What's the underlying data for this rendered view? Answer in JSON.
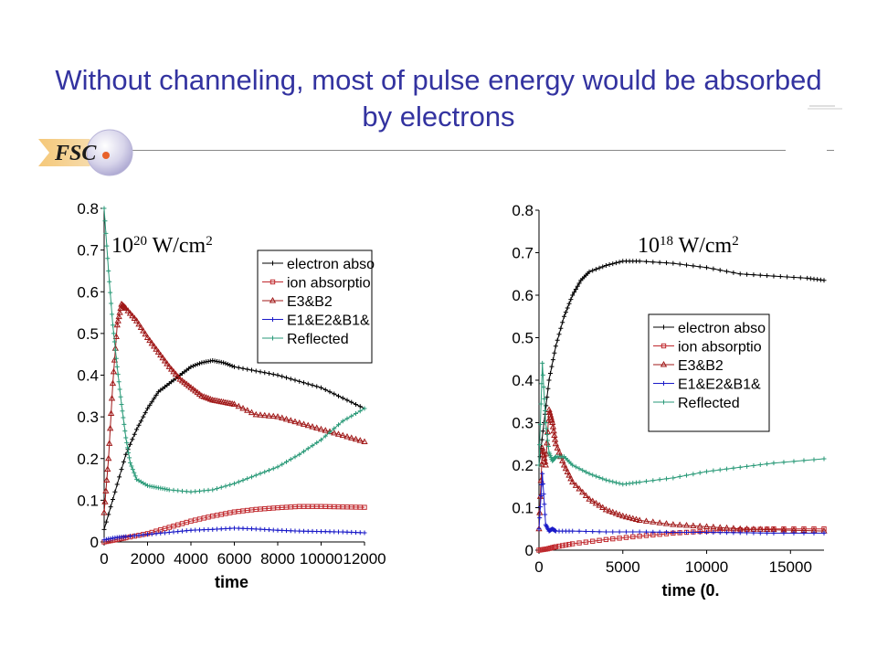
{
  "header": {
    "title": "Without channeling, most of pulse energy would be absorbed by electrons",
    "logo_text": "FSC"
  },
  "colors": {
    "title": "#3333a0",
    "electron": "#000000",
    "ion": "#c0282d",
    "e3b2": "#a01818",
    "e1e2b1b3": "#1a1ac8",
    "reflected": "#2a9a78"
  },
  "chart_data": [
    {
      "type": "line",
      "annotation": "10^20 W/cm^2",
      "intensity_base": "10",
      "intensity_exp": "20",
      "intensity_unit": " W/cm",
      "intensity_unit_exp": "2",
      "xlabel": "time",
      "ylabel": "",
      "xlim": [
        0,
        12000
      ],
      "ylim": [
        0,
        0.8
      ],
      "xticks": [
        "0",
        "2000",
        "4000",
        "6000",
        "8000",
        "10000",
        "12000"
      ],
      "yticks": [
        "0",
        "0.1",
        "0.2",
        "0.3",
        "0.4",
        "0.5",
        "0.6",
        "0.7",
        "0.8"
      ],
      "legend": [
        "electron abso",
        "ion absorptio",
        "E3&B2",
        "E1&E2&B1&",
        "Reflected"
      ],
      "legend_position": "top-right",
      "series": [
        {
          "name": "electron abso",
          "x": [
            0,
            500,
            1000,
            1500,
            2000,
            2500,
            3000,
            3500,
            4000,
            4500,
            5000,
            5500,
            6000,
            7000,
            8000,
            9000,
            10000,
            11000,
            12000
          ],
          "y": [
            0.03,
            0.12,
            0.21,
            0.27,
            0.32,
            0.36,
            0.38,
            0.4,
            0.42,
            0.43,
            0.435,
            0.43,
            0.42,
            0.41,
            0.4,
            0.385,
            0.37,
            0.345,
            0.32
          ]
        },
        {
          "name": "ion absorptio",
          "x": [
            0,
            500,
            1000,
            2000,
            3000,
            4000,
            5000,
            6000,
            7000,
            8000,
            9000,
            10000,
            11000,
            12000
          ],
          "y": [
            0.0,
            0.005,
            0.01,
            0.02,
            0.035,
            0.05,
            0.062,
            0.072,
            0.078,
            0.082,
            0.085,
            0.085,
            0.084,
            0.083
          ]
        },
        {
          "name": "E3&B2",
          "x": [
            0,
            200,
            400,
            600,
            800,
            1000,
            1500,
            2000,
            2500,
            3000,
            3500,
            4000,
            4500,
            5000,
            5500,
            6000,
            7000,
            8000,
            9000,
            10000,
            11000,
            12000
          ],
          "y": [
            0.07,
            0.2,
            0.38,
            0.52,
            0.57,
            0.56,
            0.53,
            0.49,
            0.455,
            0.42,
            0.39,
            0.37,
            0.35,
            0.34,
            0.335,
            0.33,
            0.305,
            0.3,
            0.285,
            0.27,
            0.255,
            0.24
          ]
        },
        {
          "name": "E1&E2&B1&",
          "x": [
            0,
            500,
            1000,
            2000,
            3000,
            4000,
            5000,
            6000,
            7000,
            8000,
            9000,
            10000,
            11000,
            12000
          ],
          "y": [
            0.005,
            0.01,
            0.013,
            0.018,
            0.023,
            0.028,
            0.03,
            0.033,
            0.031,
            0.028,
            0.026,
            0.025,
            0.024,
            0.022
          ]
        },
        {
          "name": "Reflected",
          "x": [
            0,
            200,
            400,
            600,
            800,
            1000,
            1200,
            1500,
            2000,
            2500,
            3000,
            4000,
            5000,
            6000,
            7000,
            8000,
            9000,
            10000,
            11000,
            12000
          ],
          "y": [
            0.8,
            0.65,
            0.52,
            0.42,
            0.33,
            0.25,
            0.19,
            0.15,
            0.135,
            0.13,
            0.125,
            0.12,
            0.125,
            0.14,
            0.16,
            0.18,
            0.21,
            0.245,
            0.29,
            0.32
          ]
        }
      ]
    },
    {
      "type": "line",
      "annotation": "10^18 W/cm^2",
      "intensity_base": "10",
      "intensity_exp": "18",
      "intensity_unit": " W/cm",
      "intensity_unit_exp": "2",
      "xlabel": "time (0.",
      "ylabel": "",
      "xlim": [
        0,
        17000
      ],
      "ylim": [
        0,
        0.8
      ],
      "xticks": [
        "0",
        "5000",
        "10000",
        "15000"
      ],
      "xtick_values": [
        0,
        5000,
        10000,
        15000
      ],
      "yticks": [
        "0",
        "0.1",
        "0.2",
        "0.3",
        "0.4",
        "0.5",
        "0.6",
        "0.7",
        "0.8"
      ],
      "legend": [
        "electron abso",
        "ion absorptio",
        "E3&B2",
        "E1&E2&B1&",
        "Reflected"
      ],
      "legend_position": "center-right",
      "series": [
        {
          "name": "electron abso",
          "x": [
            0,
            300,
            600,
            1000,
            1500,
            2000,
            2500,
            3000,
            4000,
            5000,
            6000,
            8000,
            10000,
            12000,
            14000,
            16000,
            17000
          ],
          "y": [
            0.2,
            0.3,
            0.4,
            0.48,
            0.55,
            0.6,
            0.635,
            0.655,
            0.67,
            0.68,
            0.68,
            0.675,
            0.665,
            0.65,
            0.645,
            0.64,
            0.635
          ]
        },
        {
          "name": "ion absorptio",
          "x": [
            0,
            500,
            1000,
            2000,
            4000,
            6000,
            8000,
            10000,
            12000,
            14000,
            17000
          ],
          "y": [
            0.0,
            0.003,
            0.008,
            0.015,
            0.025,
            0.033,
            0.04,
            0.045,
            0.048,
            0.05,
            0.05
          ]
        },
        {
          "name": "E3&B2",
          "x": [
            0,
            200,
            400,
            600,
            800,
            1000,
            1500,
            2000,
            3000,
            4000,
            5000,
            6000,
            8000,
            10000,
            12000,
            14000,
            17000
          ],
          "y": [
            0.05,
            0.24,
            0.2,
            0.33,
            0.3,
            0.25,
            0.2,
            0.16,
            0.12,
            0.095,
            0.08,
            0.07,
            0.06,
            0.055,
            0.05,
            0.048,
            0.045
          ]
        },
        {
          "name": "E1&E2&B1&",
          "x": [
            0,
            200,
            400,
            600,
            800,
            1000,
            2000,
            4000,
            6000,
            8000,
            10000,
            12000,
            14000,
            17000
          ],
          "y": [
            0.05,
            0.18,
            0.06,
            0.045,
            0.05,
            0.045,
            0.045,
            0.043,
            0.043,
            0.042,
            0.042,
            0.041,
            0.04,
            0.04
          ]
        },
        {
          "name": "Reflected",
          "x": [
            0,
            200,
            400,
            600,
            800,
            1000,
            1500,
            2000,
            3000,
            4000,
            5000,
            6000,
            8000,
            10000,
            12000,
            14000,
            17000
          ],
          "y": [
            0.2,
            0.44,
            0.3,
            0.23,
            0.21,
            0.22,
            0.22,
            0.2,
            0.18,
            0.165,
            0.155,
            0.16,
            0.17,
            0.185,
            0.195,
            0.205,
            0.215
          ]
        }
      ]
    }
  ]
}
